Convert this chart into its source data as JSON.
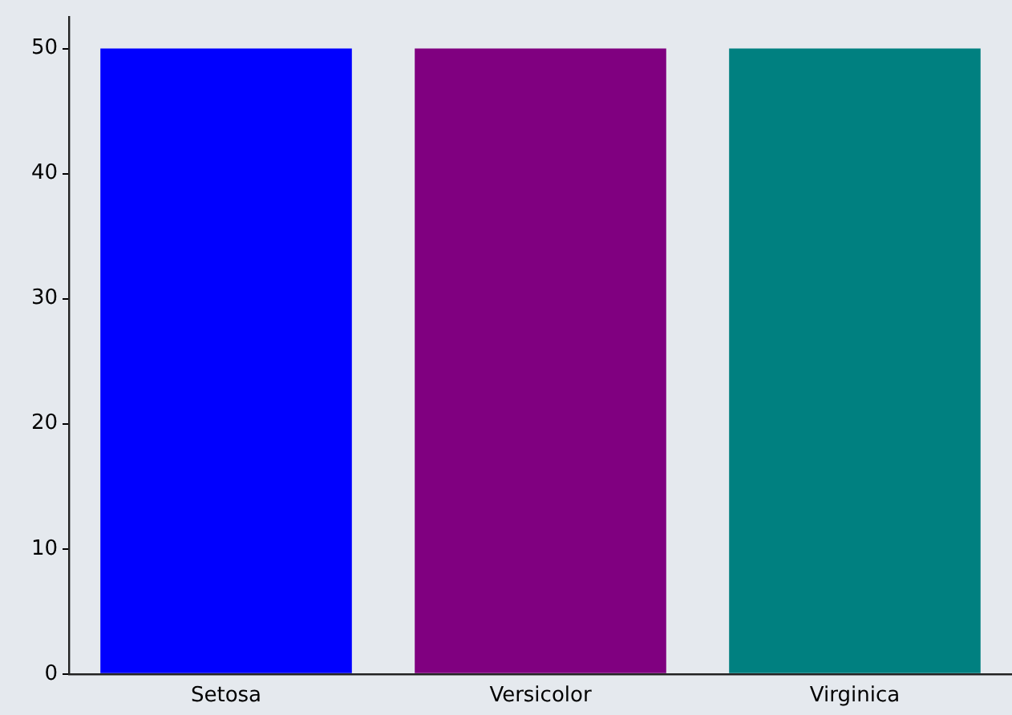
{
  "chart_data": {
    "type": "bar",
    "categories": [
      "Setosa",
      "Versicolor",
      "Virginica"
    ],
    "values": [
      50,
      50,
      50
    ],
    "colors": [
      "#0000ff",
      "#800080",
      "#008080"
    ],
    "ylim": [
      0,
      52.5
    ],
    "yticks": [
      0,
      10,
      20,
      30,
      40,
      50
    ],
    "grid": false,
    "legend": false
  }
}
